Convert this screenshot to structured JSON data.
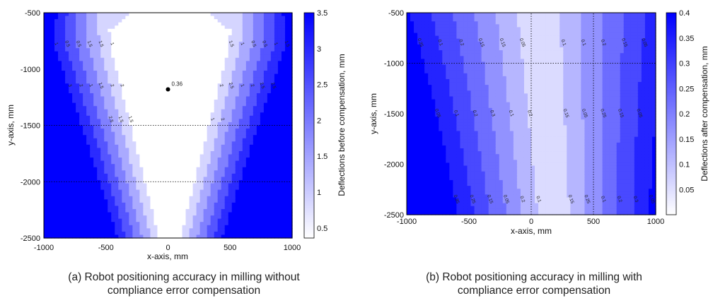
{
  "panels": [
    {
      "chart_data": {
        "type": "heatmap",
        "xlabel": "x-axis, mm",
        "ylabel": "y-axis, mm",
        "xlim": [
          -1000,
          1000
        ],
        "ylim": [
          -2500,
          -500
        ],
        "x_ticks": [
          "-1000",
          "-500",
          "0",
          "500",
          "1000"
        ],
        "y_ticks": [
          "-500",
          "-1000",
          "-1500",
          "-2000",
          "-2500"
        ],
        "colorbar": {
          "label": "Deflections before compensation, mm",
          "range": [
            0.36,
            3.5
          ],
          "ticks": [
            "3.5",
            "3",
            "2.5",
            "2",
            "1.5",
            "1",
            "0.5"
          ],
          "color_low": "#ffffff",
          "color_high": "#0000ff"
        },
        "contour_levels": [
          0.5,
          1,
          1.5,
          2,
          2.5,
          3
        ],
        "contour_labels": [
          "1",
          "1.5",
          "1.5",
          "1",
          "1.5",
          "0.5",
          "0.5",
          "0.5",
          "0.5",
          "1",
          "1",
          "1.5",
          "2",
          "2",
          "2",
          "2.5",
          "1.5",
          "1",
          "1",
          "2",
          "2",
          "2.5",
          "3",
          "2.5",
          "1.5",
          "1",
          "1.5",
          "2",
          "2.5"
        ],
        "reference_lines": {
          "y": [
            -1500,
            -2000
          ]
        },
        "minimum_marker": {
          "x": 0,
          "y": -1180,
          "label": "0.36",
          "color": "#ff0000"
        }
      },
      "caption_line1": "(a) Robot positioning accuracy in milling without",
      "caption_line2": "compliance error compensation"
    },
    {
      "chart_data": {
        "type": "heatmap",
        "xlabel": "x-axis, mm",
        "ylabel": "y-axis, mm",
        "xlim": [
          -1000,
          1000
        ],
        "ylim": [
          -2500,
          -500
        ],
        "x_ticks": [
          "-1000",
          "-500",
          "0",
          "500",
          "1000"
        ],
        "y_ticks": [
          "-500",
          "-1000",
          "-1500",
          "-2000",
          "-2500"
        ],
        "colorbar": {
          "label": "Deflections after compensation, mm",
          "range": [
            0,
            0.4
          ],
          "ticks": [
            "0.4",
            "0.35",
            "0.3",
            "0.25",
            "0.2",
            "0.15",
            "0.1",
            "0.05"
          ],
          "color_low": "#ffffff",
          "color_high": "#0000ff"
        },
        "contour_levels": [
          0.05,
          0.1,
          0.15,
          0.2,
          0.25,
          0.3,
          0.35
        ],
        "contour_labels": [
          "0.05",
          "0.1",
          "0.15",
          "0.1",
          "0.15",
          "0.2",
          "0.2",
          "0.15",
          "0.1",
          "0.05",
          "0.25",
          "0.2",
          "0.15",
          "0.1",
          "0.05",
          "0.3",
          "0.25",
          "0.2",
          "0.15",
          "0.1",
          "0.05",
          "0.05",
          "0.1",
          "0.15",
          "0.2",
          "0.25",
          "0.05",
          "0.1",
          "0.15",
          "0.2",
          "0.25",
          "0.3",
          "0.35",
          "0.05",
          "0.1",
          "0.15",
          "0.2",
          "0.25",
          "0.3",
          "0.35"
        ],
        "reference_lines": {
          "x": [
            0,
            500
          ],
          "y": [
            -1000
          ]
        }
      },
      "caption_line1": "(b) Robot positioning accuracy in milling with",
      "caption_line2": "compliance error compensation"
    }
  ]
}
